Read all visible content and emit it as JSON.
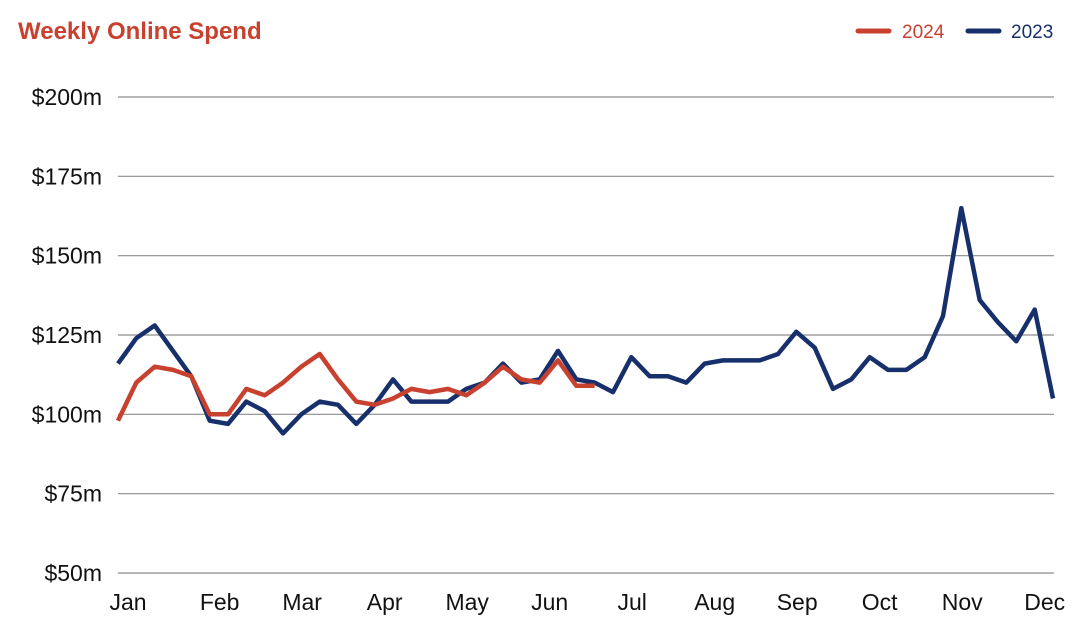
{
  "colors": {
    "title": "#c8412f",
    "series_2024": "#c8412f",
    "series_2023": "#17306b",
    "grid": "#8c8c8c",
    "text": "#111111"
  },
  "chart_data": {
    "type": "line",
    "title": "Weekly Online Spend",
    "xlabel": "",
    "ylabel": "",
    "ylim": [
      50,
      200
    ],
    "y_ticks": [
      {
        "value": 200,
        "label": "$200m"
      },
      {
        "value": 175,
        "label": "$175m"
      },
      {
        "value": 150,
        "label": "$150m"
      },
      {
        "value": 125,
        "label": "$125m"
      },
      {
        "value": 100,
        "label": "$100m"
      },
      {
        "value": 75,
        "label": "$75m"
      },
      {
        "value": 50,
        "label": "$50m"
      }
    ],
    "x_range": [
      1,
      52
    ],
    "x_ticks": [
      {
        "week": 1,
        "label": "Jan"
      },
      {
        "week": 6,
        "label": "Feb"
      },
      {
        "week": 10.5,
        "label": "Mar"
      },
      {
        "week": 15,
        "label": "Apr"
      },
      {
        "week": 19.5,
        "label": "May"
      },
      {
        "week": 24,
        "label": "Jun"
      },
      {
        "week": 28.5,
        "label": "Jul"
      },
      {
        "week": 33,
        "label": "Aug"
      },
      {
        "week": 37.5,
        "label": "Sep"
      },
      {
        "week": 42,
        "label": "Oct"
      },
      {
        "week": 46.5,
        "label": "Nov"
      },
      {
        "week": 51,
        "label": "Dec"
      }
    ],
    "grid": true,
    "legend_position": "top-right",
    "series": [
      {
        "name": "2024",
        "color": "#c8412f",
        "x": [
          1,
          2,
          3,
          4,
          5,
          6,
          7,
          8,
          9,
          10,
          11,
          12,
          13,
          14,
          15,
          16,
          17,
          18,
          19,
          20,
          21,
          22,
          23,
          24,
          25,
          26,
          27
        ],
        "values": [
          98,
          110,
          115,
          114,
          112,
          100,
          100,
          108,
          106,
          110,
          115,
          119,
          111,
          104,
          103,
          105,
          108,
          107,
          108,
          106,
          110,
          115,
          111,
          110,
          117,
          109,
          109
        ]
      },
      {
        "name": "2023",
        "color": "#17306b",
        "x": [
          1,
          2,
          3,
          4,
          5,
          6,
          7,
          8,
          9,
          10,
          11,
          12,
          13,
          14,
          15,
          16,
          17,
          18,
          19,
          20,
          21,
          22,
          23,
          24,
          25,
          26,
          27,
          28,
          29,
          30,
          31,
          32,
          33,
          34,
          35,
          36,
          37,
          38,
          39,
          40,
          41,
          42,
          43,
          44,
          45,
          46,
          47,
          48,
          49,
          50,
          51,
          52
        ],
        "values": [
          116,
          124,
          128,
          120,
          112,
          98,
          97,
          104,
          101,
          94,
          100,
          104,
          103,
          97,
          103,
          111,
          104,
          104,
          104,
          108,
          110,
          116,
          110,
          111,
          120,
          111,
          110,
          107,
          118,
          112,
          112,
          110,
          116,
          117,
          117,
          117,
          119,
          126,
          121,
          108,
          111,
          118,
          114,
          114,
          118,
          131,
          165,
          136,
          129,
          123,
          133,
          105
        ]
      }
    ]
  }
}
